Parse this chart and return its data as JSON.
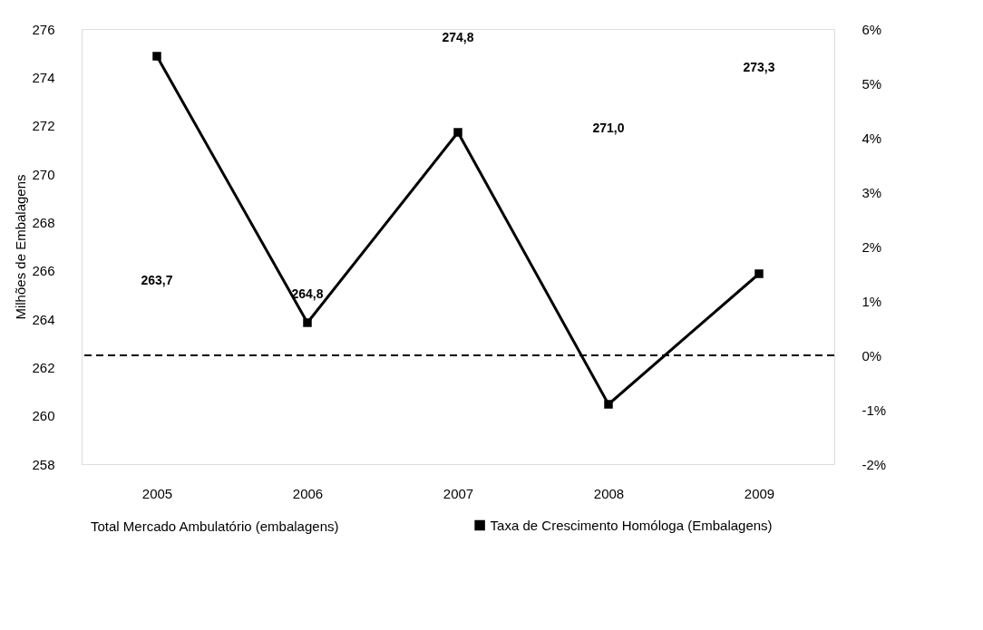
{
  "chart_data": {
    "type": "line",
    "categories": [
      "2005",
      "2006",
      "2007",
      "2008",
      "2009"
    ],
    "ylabel": "Milhões de Embalagens",
    "ylim": [
      258,
      276
    ],
    "yticks": [
      258,
      260,
      262,
      264,
      266,
      268,
      270,
      272,
      274,
      276
    ],
    "y2lim": [
      -2,
      6
    ],
    "y2ticks": [
      {
        "value": -2,
        "label": "-2%"
      },
      {
        "value": -1,
        "label": "-1%"
      },
      {
        "value": 0,
        "label": "0%"
      },
      {
        "value": 1,
        "label": "1%"
      },
      {
        "value": 2,
        "label": "2%"
      },
      {
        "value": 3,
        "label": "3%"
      },
      {
        "value": 4,
        "label": "4%"
      },
      {
        "value": 5,
        "label": "5%"
      },
      {
        "value": 6,
        "label": "6%"
      }
    ],
    "series": [
      {
        "name": "Taxa de Crescimento Homóloga (Embalagens)",
        "axis": "y2",
        "color": "#000000",
        "marker": "square",
        "line_style": "solid",
        "values": [
          5.5,
          0.6,
          4.1,
          -0.9,
          1.5
        ]
      }
    ],
    "annotations": [
      "Total Mercado Ambulatório (embalagens)",
      "263,7",
      "264,8",
      "274,8",
      "271,0",
      "273,3"
    ],
    "ref_lines": [
      {
        "axis": "y2",
        "value": 0,
        "color": "#000000",
        "line_style": "dashed"
      }
    ],
    "grid": false,
    "legend": "bottom"
  }
}
